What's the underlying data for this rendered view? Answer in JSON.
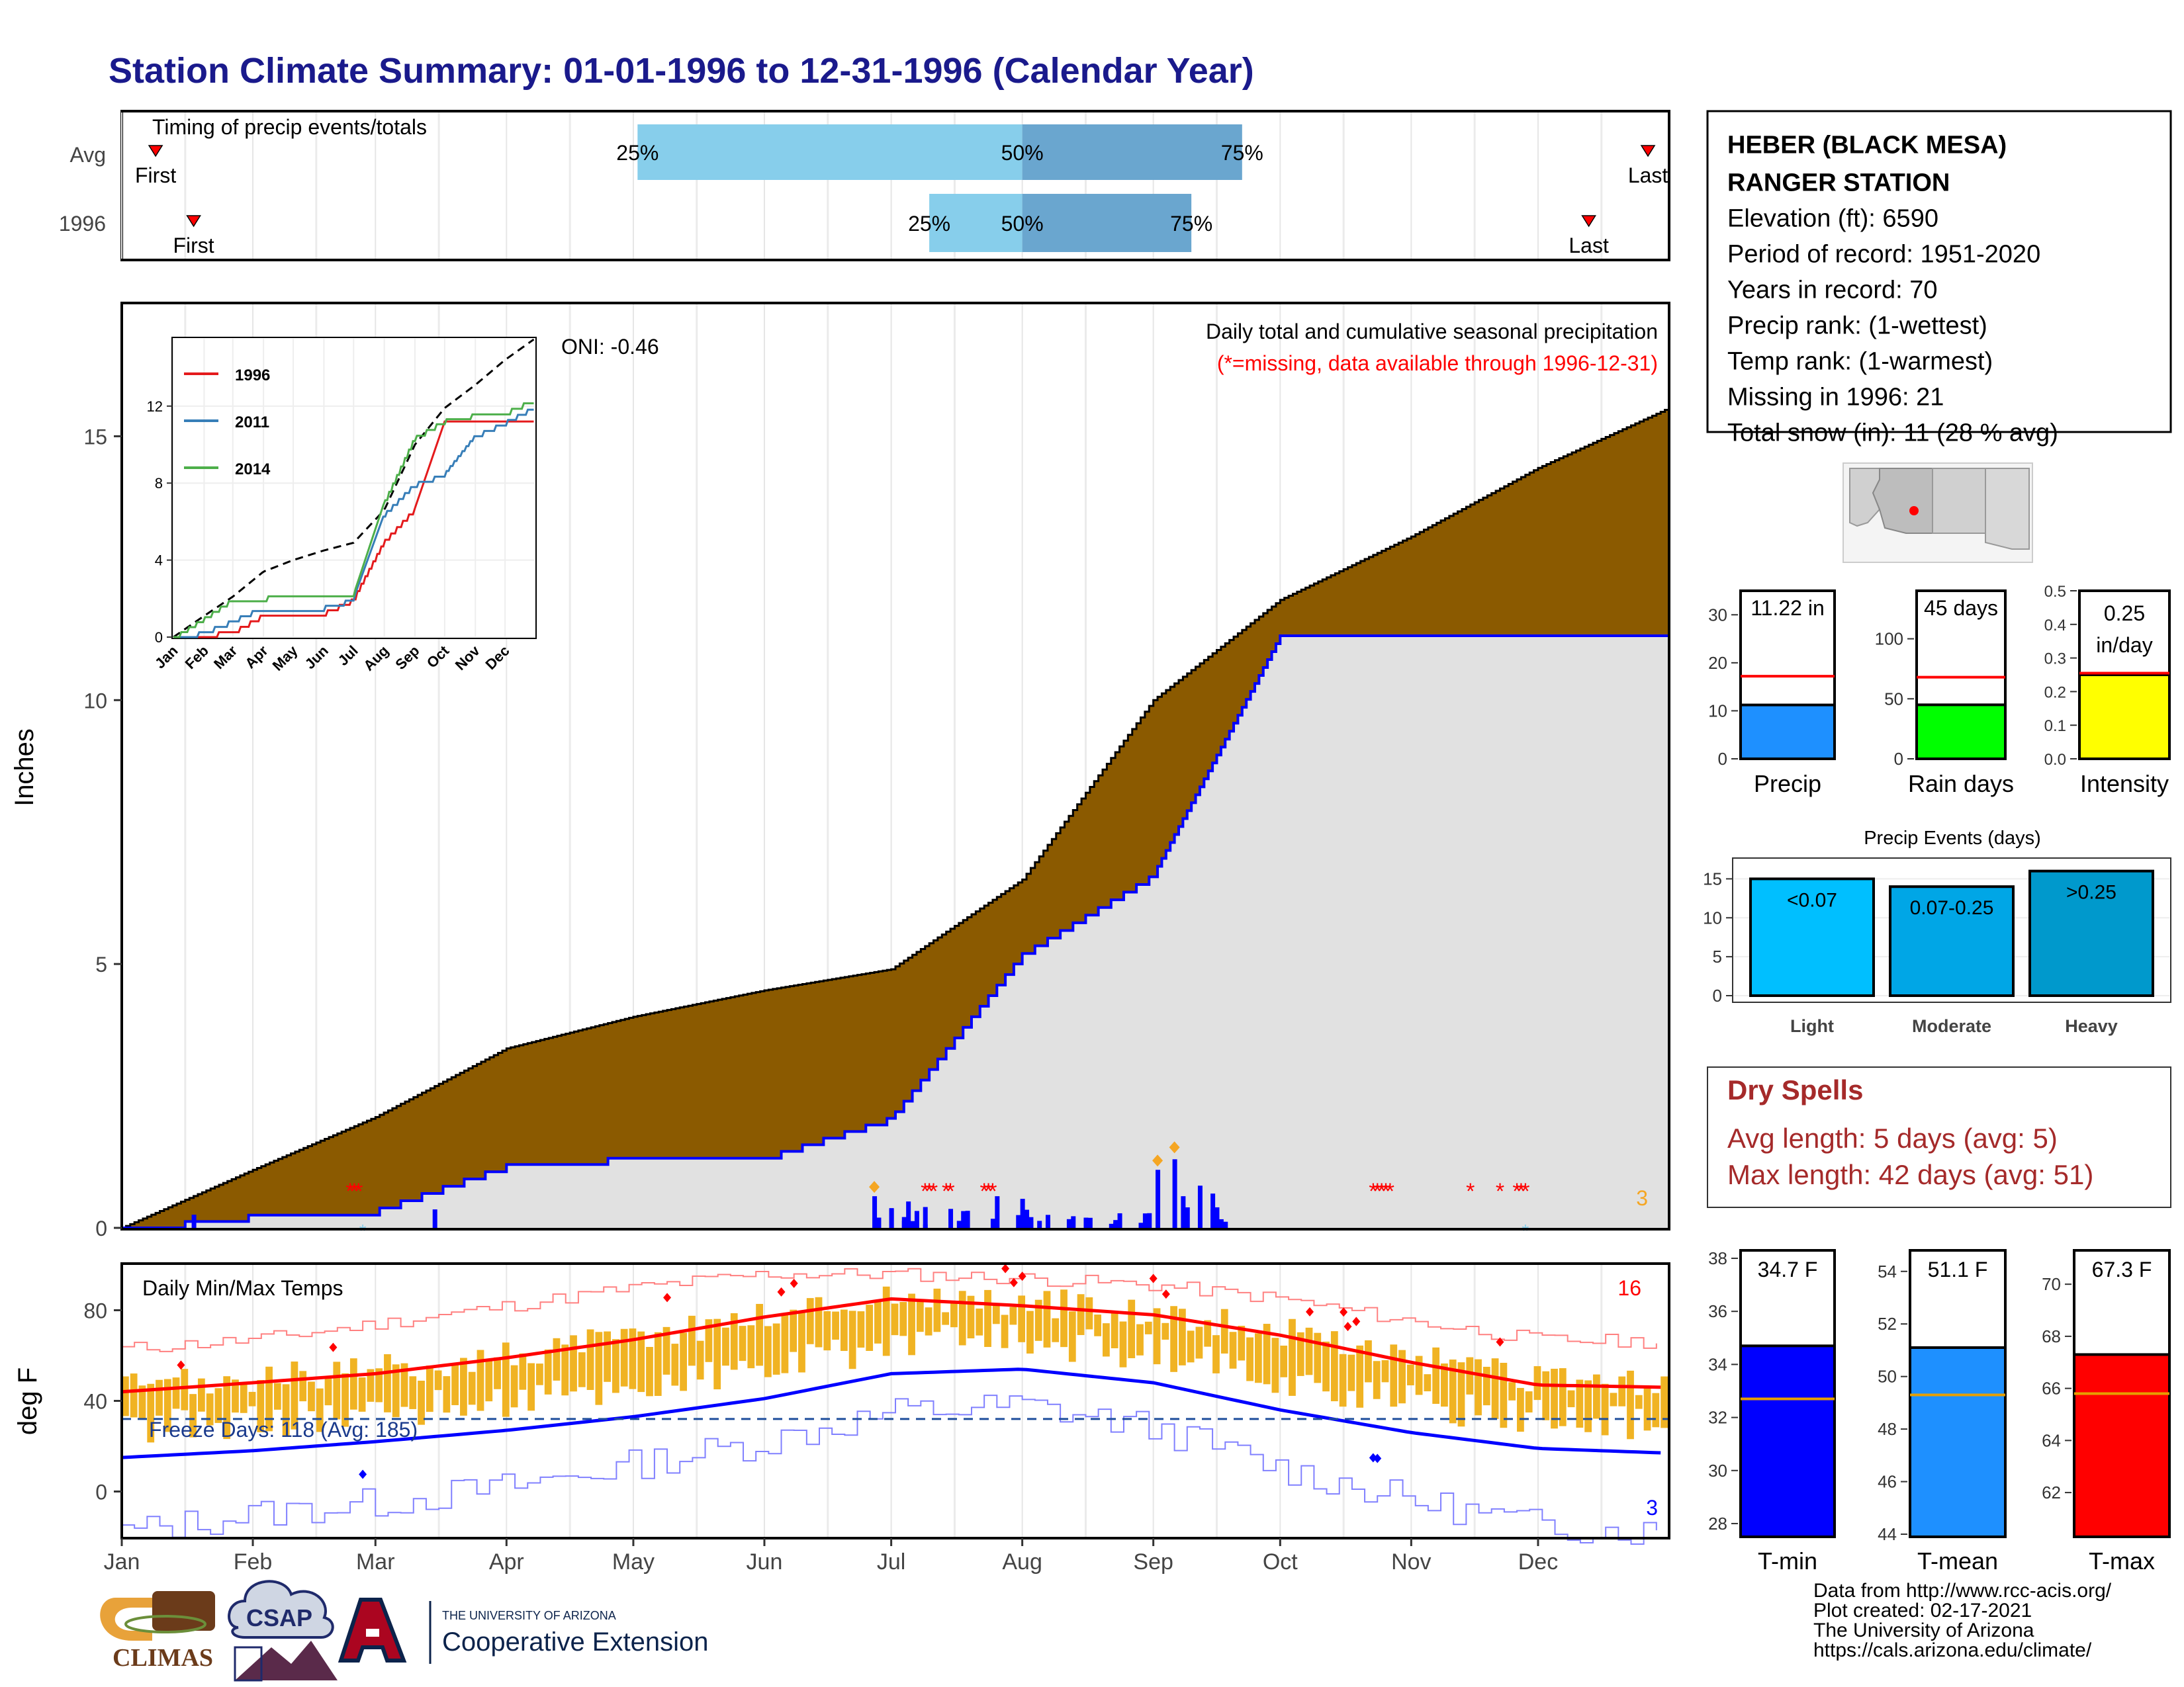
{
  "page_title": "Station Climate Summary: 01-01-1996 to 12-31-1996 (Calendar Year)",
  "colors": {
    "title": "#1a1a8c",
    "brown": "#8b5a00",
    "gray_fill": "#e1e1e1",
    "blue_line": "#0000ff",
    "red": "#ff0000",
    "orange": "#f5a623",
    "light_blue": "#87ceeb",
    "mid_blue": "#6aa6cf",
    "dry_spell": "#a52a2a"
  },
  "timing": {
    "label": "Timing of precip events/totals",
    "rows": [
      {
        "name": "Avg",
        "first_label": "First",
        "last_label": "Last",
        "p25": "25%",
        "p50": "50%",
        "p75": "75%"
      },
      {
        "name": "1996",
        "first_label": "First",
        "last_label": "Last",
        "p25": "25%",
        "p50": "50%",
        "p75": "75%"
      }
    ]
  },
  "station": {
    "name_line1": "HEBER (BLACK MESA)",
    "name_line2": "RANGER STATION",
    "elevation": "Elevation (ft): 6590",
    "period": "Period of record: 1951-2020",
    "years": "Years in record: 70",
    "precip_rank": "Precip rank:  (1-wettest)",
    "temp_rank": "Temp rank:  (1-warmest)",
    "missing": "Missing in 1996: 21",
    "snow": "Total snow (in): 11 (28 % avg)"
  },
  "precip_panel": {
    "ylabel": "Inches",
    "title": "Daily total and cumulative seasonal precipitation",
    "subtitle": "(*=missing, data available through 1996-12-31)",
    "oni": "ONI: -0.46",
    "corner_count": "3",
    "yticks": [
      "0",
      "5",
      "10",
      "15"
    ]
  },
  "inset": {
    "legend": [
      "1996",
      "2011",
      "2014"
    ],
    "yticks": [
      "0",
      "4",
      "8",
      "12"
    ],
    "xticks": [
      "Jan",
      "Feb",
      "Mar",
      "Apr",
      "May",
      "Jun",
      "Jul",
      "Aug",
      "Sep",
      "Oct",
      "Nov",
      "Dec"
    ]
  },
  "small_bars": {
    "precip": {
      "label": "Precip",
      "value_label": "11.22 in",
      "yticks": [
        "0",
        "10",
        "20",
        "30"
      ]
    },
    "rain_days": {
      "label": "Rain days",
      "value_label": "45 days",
      "yticks": [
        "0",
        "50",
        "100"
      ]
    },
    "intensity": {
      "label": "Intensity",
      "value_label1": "0.25",
      "value_label2": "in/day",
      "yticks": [
        "0.0",
        "0.1",
        "0.2",
        "0.3",
        "0.4",
        "0.5"
      ]
    }
  },
  "events": {
    "title": "Precip Events (days)",
    "yticks": [
      "0",
      "5",
      "10",
      "15"
    ],
    "bars": [
      {
        "label": "Light",
        "value_label": "<0.07"
      },
      {
        "label": "Moderate",
        "value_label": "0.07-0.25"
      },
      {
        "label": "Heavy",
        "value_label": ">0.25"
      }
    ]
  },
  "dry_spells": {
    "title": "Dry Spells",
    "avg": "Avg length: 5 days (avg: 5)",
    "max": "Max length: 42 days (avg: 51)"
  },
  "temp_panel": {
    "ylabel": "deg F",
    "title": "Daily Min/Max Temps",
    "freeze": "Freeze Days: 118 (Avg: 185)",
    "count_hot": "16",
    "count_cold": "3",
    "yticks": [
      "0",
      "40",
      "80"
    ]
  },
  "months": [
    "Jan",
    "Feb",
    "Mar",
    "Apr",
    "May",
    "Jun",
    "Jul",
    "Aug",
    "Sep",
    "Oct",
    "Nov",
    "Dec"
  ],
  "temp_bars": {
    "tmin": {
      "label": "T-min",
      "value_label": "34.7 F",
      "yticks": [
        "28",
        "30",
        "32",
        "34",
        "36",
        "38"
      ]
    },
    "tmean": {
      "label": "T-mean",
      "value_label": "51.1 F",
      "yticks": [
        "44",
        "46",
        "48",
        "50",
        "52",
        "54"
      ]
    },
    "tmax": {
      "label": "T-max",
      "value_label": "67.3 F",
      "yticks": [
        "62",
        "64",
        "66",
        "68",
        "70"
      ]
    }
  },
  "footer": {
    "line1": "Data from http://www.rcc-acis.org/",
    "line2": "Plot created: 02-17-2021",
    "line3": "The University of Arizona",
    "line4": "https://cals.arizona.edu/climate/"
  },
  "logos": {
    "climas": "CLIMAS",
    "csap": "CSAP",
    "ua_small": "THE UNIVERSITY OF ARIZONA",
    "ua_big": "Cooperative Extension"
  },
  "chart_data": [
    {
      "type": "bar",
      "name": "timing",
      "categories": [
        "Avg",
        "1996"
      ],
      "series": [
        {
          "name": "Avg",
          "first": "Jan-09",
          "p25": "May-02",
          "p50": "Aug-01",
          "p75": "Sep-22",
          "last": "Dec-27"
        },
        {
          "name": "1996",
          "first": "Jan-18",
          "p25": "Jul-10",
          "p50": "Aug-01",
          "p75": "Sep-10",
          "last": "Dec-13"
        }
      ]
    },
    {
      "type": "area",
      "name": "cumulative_precip",
      "x": [
        "Jan-01",
        "Feb-01",
        "Mar-01",
        "Apr-01",
        "May-01",
        "Jun-01",
        "Jul-01",
        "Aug-01",
        "Sep-01",
        "Oct-01",
        "Nov-01",
        "Dec-01",
        "Dec-31"
      ],
      "series": [
        {
          "name": "avg_cumulative",
          "values": [
            0,
            1.1,
            2.1,
            3.4,
            4.0,
            4.5,
            4.9,
            6.6,
            10.0,
            11.9,
            13.1,
            14.4,
            15.5
          ]
        },
        {
          "name": "1996_cumulative",
          "values": [
            0,
            0.25,
            0.35,
            1.2,
            1.35,
            1.35,
            2.1,
            5.2,
            6.7,
            11.22,
            11.22,
            11.22,
            11.22
          ]
        }
      ],
      "ylim": [
        0,
        17.5
      ],
      "daily_1996": [
        {
          "x": "Jan-18",
          "y": 0.25
        },
        {
          "x": "Mar-15",
          "y": 0.35
        },
        {
          "x": "Jun-27",
          "y": 0.6
        },
        {
          "x": "Jul-05",
          "y": 0.5
        },
        {
          "x": "Jul-26",
          "y": 0.6
        },
        {
          "x": "Aug-01",
          "y": 0.55
        },
        {
          "x": "Sep-02",
          "y": 1.1
        },
        {
          "x": "Sep-06",
          "y": 1.3
        },
        {
          "x": "Sep-08",
          "y": 0.6
        },
        {
          "x": "Sep-12",
          "y": 0.8
        },
        {
          "x": "Sep-15",
          "y": 0.65
        }
      ]
    },
    {
      "type": "line",
      "name": "inset_cumulative",
      "x": [
        "Jan",
        "Feb",
        "Mar",
        "Apr",
        "May",
        "Jun",
        "Jul",
        "Aug",
        "Sep",
        "Oct",
        "Nov",
        "Dec",
        "end"
      ],
      "series": [
        {
          "name": "avg",
          "values": [
            0,
            1.1,
            2.1,
            3.4,
            4.0,
            4.5,
            4.9,
            6.6,
            10.0,
            11.9,
            13.1,
            14.4,
            15.5
          ]
        },
        {
          "name": "1996",
          "values": [
            0,
            0.2,
            0.3,
            1.2,
            1.3,
            1.3,
            2.0,
            5.0,
            6.7,
            11.2,
            11.2,
            11.2,
            11.2
          ]
        },
        {
          "name": "2011",
          "values": [
            0,
            0.3,
            0.9,
            1.6,
            1.6,
            1.6,
            2.0,
            6.4,
            8.0,
            8.5,
            10.5,
            11.2,
            12.0
          ]
        },
        {
          "name": "2014",
          "values": [
            0,
            1.0,
            2.0,
            2.1,
            2.2,
            2.2,
            2.2,
            7.0,
            10.4,
            11.3,
            11.6,
            11.7,
            12.4
          ]
        }
      ],
      "ylim": [
        0,
        15.5
      ]
    },
    {
      "type": "bar",
      "name": "precip_total",
      "categories": [
        "Precip"
      ],
      "values": [
        11.22
      ],
      "avg": 17.2,
      "ylim": [
        0,
        35
      ]
    },
    {
      "type": "bar",
      "name": "rain_days",
      "categories": [
        "Rain days"
      ],
      "values": [
        45
      ],
      "avg": 68,
      "ylim": [
        0,
        140
      ]
    },
    {
      "type": "bar",
      "name": "intensity",
      "categories": [
        "Intensity"
      ],
      "values": [
        0.25
      ],
      "avg": 0.255,
      "ylim": [
        0,
        0.5
      ]
    },
    {
      "type": "bar",
      "name": "precip_events",
      "categories": [
        "Light",
        "Moderate",
        "Heavy"
      ],
      "values": [
        15,
        14,
        16
      ],
      "ylim": [
        0,
        17.5
      ]
    },
    {
      "type": "line",
      "name": "temperature",
      "x": [
        "Jan-01",
        "Feb-01",
        "Mar-01",
        "Apr-01",
        "May-01",
        "Jun-01",
        "Jul-01",
        "Aug-01",
        "Sep-01",
        "Oct-01",
        "Nov-01",
        "Dec-01",
        "Dec-31"
      ],
      "series": [
        {
          "name": "avg_max",
          "values": [
            44,
            48,
            52,
            59,
            67,
            77,
            85,
            82,
            78,
            69,
            57,
            47,
            46
          ]
        },
        {
          "name": "avg_min",
          "values": [
            15,
            18,
            22,
            27,
            33,
            41,
            52,
            54,
            48,
            36,
            26,
            19,
            17
          ]
        },
        {
          "name": "record_max",
          "values": [
            63,
            67,
            74,
            82,
            90,
            96,
            96,
            94,
            91,
            85,
            75,
            67,
            66
          ]
        },
        {
          "name": "record_min",
          "values": [
            -18,
            -10,
            -5,
            2,
            12,
            22,
            35,
            38,
            28,
            10,
            -4,
            -15,
            -18
          ]
        }
      ],
      "freeze_line": 32,
      "ylim": [
        -20,
        100
      ]
    },
    {
      "type": "bar",
      "name": "tmin",
      "categories": [
        "T-min"
      ],
      "values": [
        34.7
      ],
      "avg": 32.7,
      "ylim": [
        27.5,
        38.3
      ]
    },
    {
      "type": "bar",
      "name": "tmean",
      "categories": [
        "T-mean"
      ],
      "values": [
        51.1
      ],
      "avg": 49.3,
      "ylim": [
        43.9,
        54.8
      ]
    },
    {
      "type": "bar",
      "name": "tmax",
      "categories": [
        "T-max"
      ],
      "values": [
        67.3
      ],
      "avg": 65.8,
      "ylim": [
        60.3,
        71.3
      ]
    }
  ]
}
